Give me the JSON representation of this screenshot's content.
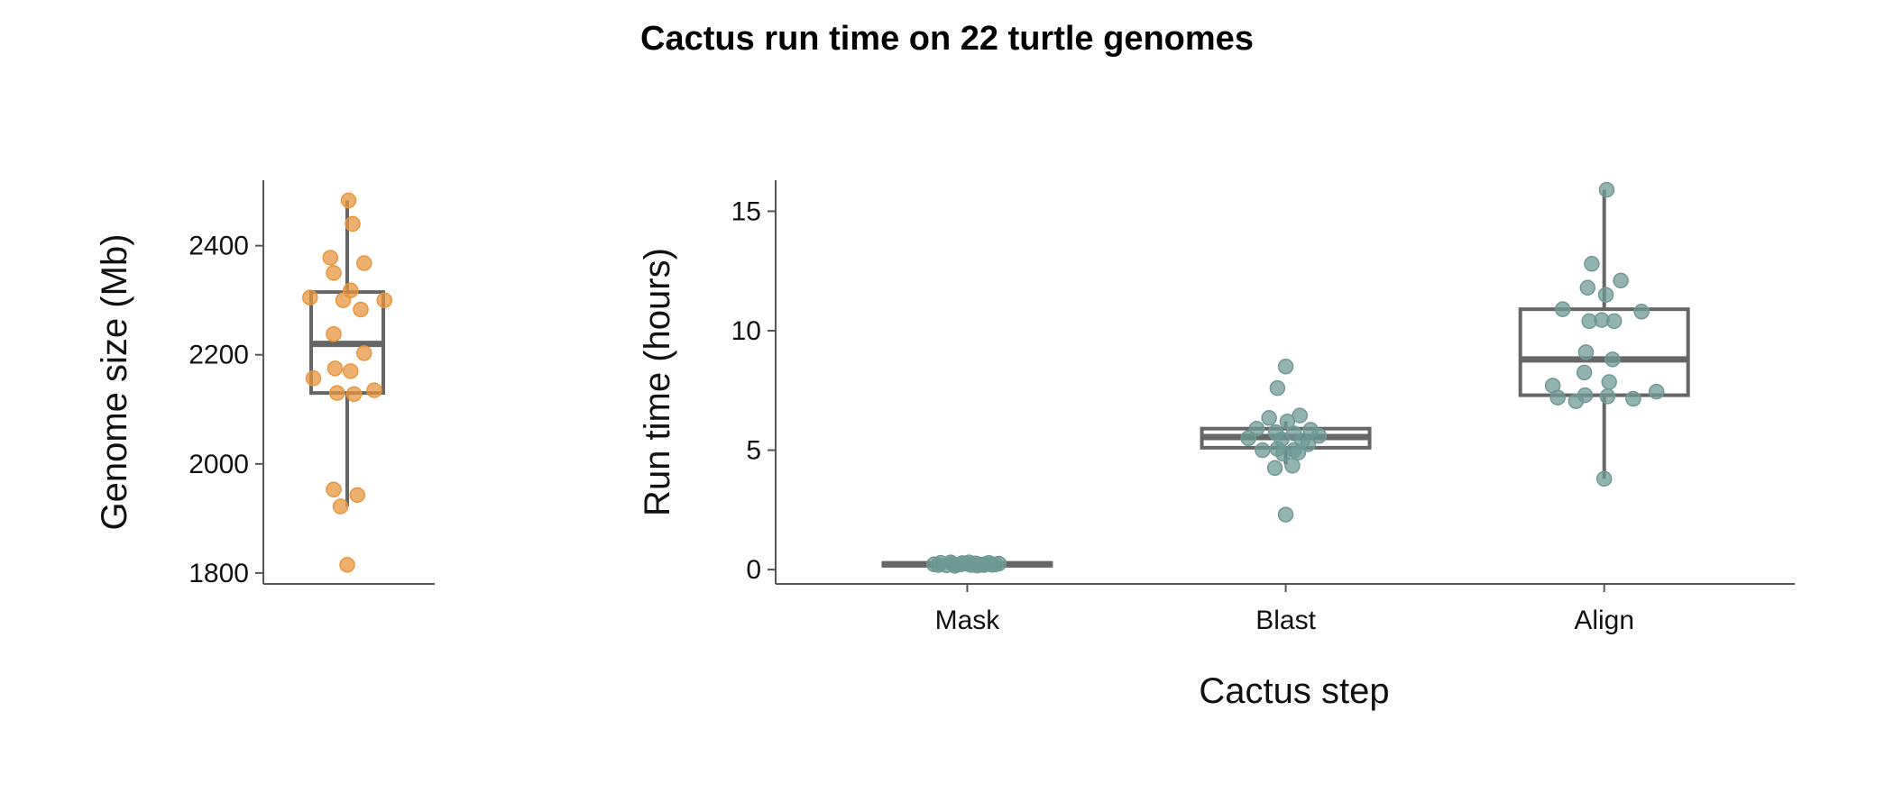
{
  "title": "Cactus run time on 22 turtle genomes",
  "colors": {
    "genome_points": "#e8953e",
    "runtime_points": "#6e9996",
    "box": "#666666",
    "axis": "#555555"
  },
  "chart_data": [
    {
      "type": "box",
      "ylabel": "Genome size (Mb)",
      "xlabel": "",
      "ylim": [
        1780,
        2520
      ],
      "yticks": [
        1800,
        2000,
        2200,
        2400
      ],
      "categories": [
        ""
      ],
      "boxes": [
        {
          "category": "",
          "min": 1922,
          "q1": 2130,
          "median": 2220,
          "q3": 2315,
          "max": 2483
        }
      ],
      "points": [
        [
          {
            "x_jitter": 0.02,
            "y": 2483
          },
          {
            "x_jitter": 0.08,
            "y": 2440
          },
          {
            "x_jitter": -0.25,
            "y": 2378
          },
          {
            "x_jitter": 0.25,
            "y": 2368
          },
          {
            "x_jitter": -0.2,
            "y": 2350
          },
          {
            "x_jitter": 0.05,
            "y": 2318
          },
          {
            "x_jitter": -0.55,
            "y": 2305
          },
          {
            "x_jitter": -0.06,
            "y": 2300
          },
          {
            "x_jitter": 0.55,
            "y": 2300
          },
          {
            "x_jitter": 0.2,
            "y": 2283
          },
          {
            "x_jitter": -0.2,
            "y": 2238
          },
          {
            "x_jitter": 0.25,
            "y": 2203
          },
          {
            "x_jitter": -0.18,
            "y": 2175
          },
          {
            "x_jitter": 0.05,
            "y": 2170
          },
          {
            "x_jitter": -0.5,
            "y": 2157
          },
          {
            "x_jitter": 0.4,
            "y": 2135
          },
          {
            "x_jitter": -0.15,
            "y": 2130
          },
          {
            "x_jitter": 0.1,
            "y": 2128
          },
          {
            "x_jitter": -0.2,
            "y": 1953
          },
          {
            "x_jitter": 0.15,
            "y": 1943
          },
          {
            "x_jitter": -0.1,
            "y": 1922
          },
          {
            "x_jitter": 0.0,
            "y": 1815
          }
        ]
      ]
    },
    {
      "type": "box",
      "ylabel": "Run time (hours)",
      "xlabel": "Cactus step",
      "ylim": [
        -0.6,
        16.3
      ],
      "yticks": [
        0,
        5,
        10,
        15
      ],
      "categories": [
        "Mask",
        "Blast",
        "Align"
      ],
      "boxes": [
        {
          "category": "Mask",
          "min": 0.12,
          "q1": 0.16,
          "median": 0.22,
          "q3": 0.28,
          "max": 0.32
        },
        {
          "category": "Blast",
          "min": 4.4,
          "q1": 5.1,
          "median": 5.55,
          "q3": 5.9,
          "max": 6.2
        },
        {
          "category": "Align",
          "min": 3.8,
          "q1": 7.3,
          "median": 8.8,
          "q3": 10.9,
          "max": 15.9
        }
      ],
      "points": [
        [
          {
            "x_jitter": -0.4,
            "y": 0.22
          },
          {
            "x_jitter": -0.32,
            "y": 0.28
          },
          {
            "x_jitter": -0.25,
            "y": 0.18
          },
          {
            "x_jitter": -0.18,
            "y": 0.25
          },
          {
            "x_jitter": -0.12,
            "y": 0.2
          },
          {
            "x_jitter": -0.06,
            "y": 0.27
          },
          {
            "x_jitter": 0.0,
            "y": 0.24
          },
          {
            "x_jitter": 0.05,
            "y": 0.19
          },
          {
            "x_jitter": 0.1,
            "y": 0.26
          },
          {
            "x_jitter": 0.16,
            "y": 0.21
          },
          {
            "x_jitter": 0.22,
            "y": 0.23
          },
          {
            "x_jitter": 0.3,
            "y": 0.2
          },
          {
            "x_jitter": 0.38,
            "y": 0.25
          },
          {
            "x_jitter": -0.2,
            "y": 0.3
          },
          {
            "x_jitter": 0.12,
            "y": 0.17
          },
          {
            "x_jitter": -0.08,
            "y": 0.22
          },
          {
            "x_jitter": 0.26,
            "y": 0.28
          },
          {
            "x_jitter": -0.35,
            "y": 0.19
          },
          {
            "x_jitter": 0.34,
            "y": 0.22
          },
          {
            "x_jitter": 0.02,
            "y": 0.3
          },
          {
            "x_jitter": -0.15,
            "y": 0.16
          },
          {
            "x_jitter": 0.2,
            "y": 0.19
          }
        ],
        [
          {
            "x_jitter": 0.0,
            "y": 8.5
          },
          {
            "x_jitter": -0.1,
            "y": 7.6
          },
          {
            "x_jitter": 0.17,
            "y": 6.45
          },
          {
            "x_jitter": -0.2,
            "y": 6.35
          },
          {
            "x_jitter": 0.02,
            "y": 6.2
          },
          {
            "x_jitter": -0.35,
            "y": 5.9
          },
          {
            "x_jitter": 0.3,
            "y": 5.85
          },
          {
            "x_jitter": -0.12,
            "y": 5.75
          },
          {
            "x_jitter": 0.1,
            "y": 5.7
          },
          {
            "x_jitter": -0.45,
            "y": 5.5
          },
          {
            "x_jitter": 0.4,
            "y": 5.6
          },
          {
            "x_jitter": 0.2,
            "y": 5.4
          },
          {
            "x_jitter": -0.05,
            "y": 5.45
          },
          {
            "x_jitter": 0.27,
            "y": 5.25
          },
          {
            "x_jitter": -0.28,
            "y": 5.0
          },
          {
            "x_jitter": -0.1,
            "y": 5.05
          },
          {
            "x_jitter": 0.1,
            "y": 5.0
          },
          {
            "x_jitter": -0.03,
            "y": 4.85
          },
          {
            "x_jitter": 0.08,
            "y": 4.35
          },
          {
            "x_jitter": -0.13,
            "y": 4.25
          },
          {
            "x_jitter": 0.0,
            "y": 2.3
          },
          {
            "x_jitter": 0.15,
            "y": 4.9
          }
        ],
        [
          {
            "x_jitter": 0.03,
            "y": 15.9
          },
          {
            "x_jitter": -0.15,
            "y": 12.8
          },
          {
            "x_jitter": 0.2,
            "y": 12.1
          },
          {
            "x_jitter": -0.2,
            "y": 11.8
          },
          {
            "x_jitter": 0.02,
            "y": 11.5
          },
          {
            "x_jitter": -0.5,
            "y": 10.9
          },
          {
            "x_jitter": 0.45,
            "y": 10.8
          },
          {
            "x_jitter": -0.18,
            "y": 10.4
          },
          {
            "x_jitter": 0.12,
            "y": 10.4
          },
          {
            "x_jitter": -0.03,
            "y": 10.45
          },
          {
            "x_jitter": -0.22,
            "y": 9.1
          },
          {
            "x_jitter": 0.1,
            "y": 8.8
          },
          {
            "x_jitter": -0.24,
            "y": 8.25
          },
          {
            "x_jitter": -0.62,
            "y": 7.7
          },
          {
            "x_jitter": 0.06,
            "y": 7.85
          },
          {
            "x_jitter": 0.63,
            "y": 7.45
          },
          {
            "x_jitter": -0.23,
            "y": 7.3
          },
          {
            "x_jitter": 0.04,
            "y": 7.25
          },
          {
            "x_jitter": -0.56,
            "y": 7.2
          },
          {
            "x_jitter": -0.34,
            "y": 7.05
          },
          {
            "x_jitter": 0.35,
            "y": 7.15
          },
          {
            "x_jitter": 0.0,
            "y": 3.8
          }
        ]
      ]
    }
  ]
}
